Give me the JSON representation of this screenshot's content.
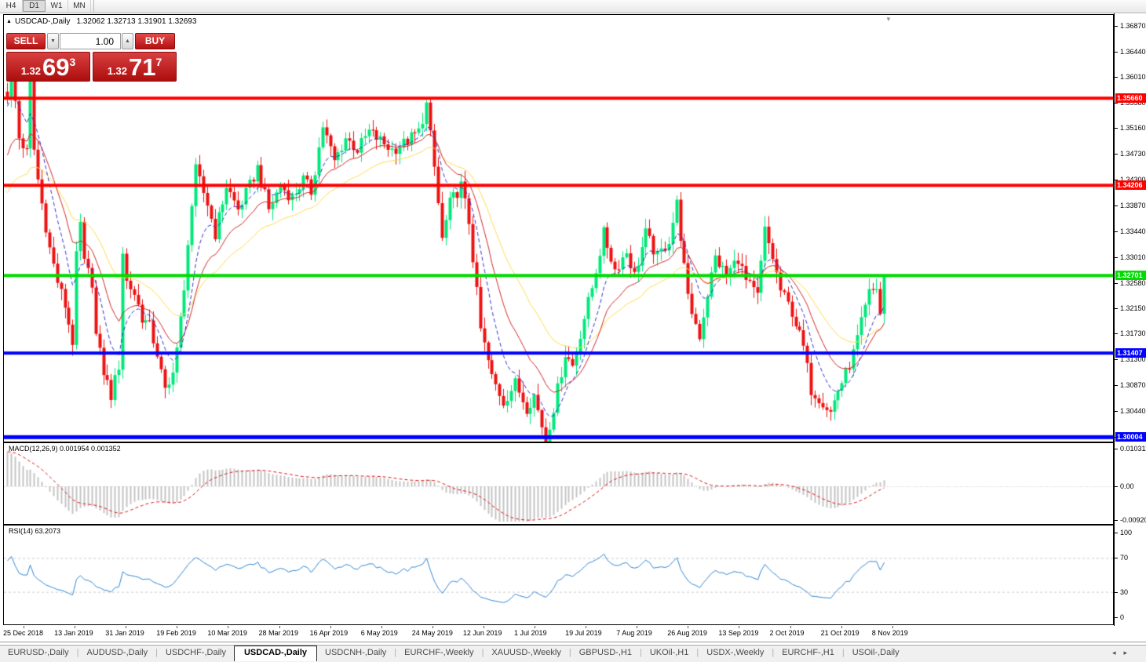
{
  "toolbar": {
    "timeframes": [
      {
        "label": "H4",
        "active": false
      },
      {
        "label": "D1",
        "active": true
      },
      {
        "label": "W1",
        "active": false
      },
      {
        "label": "MN",
        "active": false
      }
    ]
  },
  "chart": {
    "header": {
      "collapse_icon": "▲",
      "symbol": "USDCAD-,Daily",
      "ohlc": "1.32062 1.32713 1.31901 1.32693"
    },
    "scroll_marker": "▼"
  },
  "trade": {
    "sell_label": "SELL",
    "buy_label": "BUY",
    "volume": "1.00",
    "spin_down": "▼",
    "spin_up": "▲",
    "sell_small": "1.32",
    "sell_big": "69",
    "sell_sup": "3",
    "buy_small": "1.32",
    "buy_big": "71",
    "buy_sup": "7"
  },
  "colors": {
    "up": "#00e87a",
    "down": "#ee1111",
    "ma_fast_blue": "#3030cf",
    "ma_mid_red": "#d02828",
    "ma_slow_yellow": "#ffdb4d",
    "hline_red": "#ff0000",
    "hline_green": "#00dc00",
    "hline_blue": "#0000ff",
    "macd_hist": "#c4c4c4",
    "macd_signal": "#e01010",
    "rsi_line": "#2e86d4",
    "grid": "#c8c8c8"
  },
  "chart_data": {
    "type": "candlestick",
    "symbol": "USDCAD-,Daily",
    "n_bars": 229,
    "last_ohlc": {
      "open": 1.32062,
      "high": 1.32713,
      "low": 1.31901,
      "close": 1.32693
    },
    "price_max": 1.3705,
    "price_min": 1.2993,
    "y_ticks": [
      "1.36870",
      "1.36440",
      "1.36010",
      "1.35580",
      "1.35160",
      "1.34730",
      "1.34300",
      "1.33870",
      "1.33440",
      "1.33010",
      "1.32580",
      "1.32150",
      "1.31730",
      "1.31300",
      "1.30870",
      "1.30440",
      "1.30010"
    ],
    "hlines": [
      {
        "price": 1.3566,
        "label": "1.35660",
        "color": "#ff0000",
        "width": 4
      },
      {
        "price": 1.34206,
        "label": "1.34206",
        "color": "#ff0000",
        "width": 4
      },
      {
        "price": 1.32701,
        "label": "1.32701",
        "color": "#00dc00",
        "width": 4
      },
      {
        "price": 1.31407,
        "label": "1.31407",
        "color": "#0000ff",
        "width": 4
      },
      {
        "price": 1.30004,
        "label": "1.30004",
        "color": "#0000ff",
        "width": 5
      }
    ],
    "ma_periods": {
      "fast_blue": 8,
      "mid_red": 16,
      "slow_yellow": 32
    },
    "price_anchors": [
      [
        0,
        1.3575
      ],
      [
        1,
        1.362
      ],
      [
        2,
        1.356
      ],
      [
        3,
        1.35
      ],
      [
        5,
        1.3475
      ],
      [
        6,
        1.359
      ],
      [
        7,
        1.348
      ],
      [
        8,
        1.343
      ],
      [
        9,
        1.339
      ],
      [
        11,
        1.3315
      ],
      [
        13,
        1.326
      ],
      [
        15,
        1.322
      ],
      [
        17,
        1.316
      ],
      [
        18,
        1.33
      ],
      [
        19,
        1.3355
      ],
      [
        20,
        1.329
      ],
      [
        22,
        1.326
      ],
      [
        23,
        1.317
      ],
      [
        25,
        1.311
      ],
      [
        27,
        1.307
      ],
      [
        29,
        1.312
      ],
      [
        30,
        1.331
      ],
      [
        31,
        1.326
      ],
      [
        33,
        1.324
      ],
      [
        35,
        1.32
      ],
      [
        37,
        1.3185
      ],
      [
        39,
        1.314
      ],
      [
        41,
        1.3075
      ],
      [
        42,
        1.3085
      ],
      [
        44,
        1.315
      ],
      [
        46,
        1.324
      ],
      [
        47,
        1.333
      ],
      [
        49,
        1.3445
      ],
      [
        52,
        1.339
      ],
      [
        54,
        1.334
      ],
      [
        57,
        1.342
      ],
      [
        60,
        1.338
      ],
      [
        63,
        1.342
      ],
      [
        65,
        1.345
      ],
      [
        68,
        1.338
      ],
      [
        71,
        1.342
      ],
      [
        74,
        1.34
      ],
      [
        77,
        1.343
      ],
      [
        79,
        1.341
      ],
      [
        82,
        1.352
      ],
      [
        85,
        1.346
      ],
      [
        88,
        1.35
      ],
      [
        91,
        1.348
      ],
      [
        94,
        1.351
      ],
      [
        97,
        1.3495
      ],
      [
        100,
        1.348
      ],
      [
        103,
        1.349
      ],
      [
        107,
        1.351
      ],
      [
        109,
        1.3555
      ],
      [
        111,
        1.345
      ],
      [
        113,
        1.333
      ],
      [
        115,
        1.339
      ],
      [
        118,
        1.342
      ],
      [
        120,
        1.336
      ],
      [
        123,
        1.318
      ],
      [
        126,
        1.31
      ],
      [
        129,
        1.306
      ],
      [
        132,
        1.309
      ],
      [
        135,
        1.305
      ],
      [
        137,
        1.307
      ],
      [
        140,
        1.2995
      ],
      [
        142,
        1.305
      ],
      [
        145,
        1.314
      ],
      [
        147,
        1.312
      ],
      [
        150,
        1.32
      ],
      [
        152,
        1.325
      ],
      [
        155,
        1.334
      ],
      [
        158,
        1.328
      ],
      [
        161,
        1.331
      ],
      [
        163,
        1.327
      ],
      [
        166,
        1.334
      ],
      [
        169,
        1.33
      ],
      [
        172,
        1.333
      ],
      [
        174,
        1.339
      ],
      [
        177,
        1.323
      ],
      [
        180,
        1.317
      ],
      [
        182,
        1.324
      ],
      [
        184,
        1.33
      ],
      [
        187,
        1.327
      ],
      [
        190,
        1.33
      ],
      [
        192,
        1.326
      ],
      [
        195,
        1.3235
      ],
      [
        197,
        1.3345
      ],
      [
        199,
        1.33
      ],
      [
        201,
        1.3245
      ],
      [
        204,
        1.321
      ],
      [
        207,
        1.315
      ],
      [
        209,
        1.308
      ],
      [
        212,
        1.306
      ],
      [
        214,
        1.3042
      ],
      [
        216,
        1.308
      ],
      [
        218,
        1.3105
      ],
      [
        220,
        1.314
      ],
      [
        222,
        1.319
      ],
      [
        224,
        1.324
      ],
      [
        226,
        1.325
      ],
      [
        227,
        1.3206
      ],
      [
        228,
        1.32693
      ]
    ],
    "macd": {
      "label": "MACD(12,26,9) 0.001954 0.001352",
      "params": [
        12,
        26,
        9
      ],
      "values": [
        0.001954,
        0.001352
      ],
      "axis": [
        "0.010311",
        "0.00",
        "-0.00920"
      ]
    },
    "rsi": {
      "label": "RSI(14) 63.2073",
      "period": 14,
      "value": 63.2073,
      "levels": [
        100,
        70,
        30,
        0
      ]
    },
    "x_labels": [
      "25 Dec 2018",
      "13 Jan 2019",
      "31 Jan 2019",
      "19 Feb 2019",
      "10 Mar 2019",
      "28 Mar 2019",
      "16 Apr 2019",
      "6 May 2019",
      "24 May 2019",
      "12 Jun 2019",
      "1 Jul 2019",
      "19 Jul 2019",
      "7 Aug 2019",
      "26 Aug 2019",
      "13 Sep 2019",
      "2 Oct 2019",
      "21 Oct 2019",
      "8 Nov 2019"
    ]
  },
  "tabs": {
    "scroll_left": "◂",
    "scroll_right": "▸",
    "items": [
      {
        "label": "EURUSD-,Daily",
        "active": false
      },
      {
        "label": "AUDUSD-,Daily",
        "active": false
      },
      {
        "label": "USDCHF-,Daily",
        "active": false
      },
      {
        "label": "USDCAD-,Daily",
        "active": true
      },
      {
        "label": "USDCNH-,Daily",
        "active": false
      },
      {
        "label": "EURCHF-,Weekly",
        "active": false
      },
      {
        "label": "XAUUSD-,Weekly",
        "active": false
      },
      {
        "label": "GBPUSD-,H1",
        "active": false
      },
      {
        "label": "UKOil-,H1",
        "active": false
      },
      {
        "label": "USDX-,Weekly",
        "active": false
      },
      {
        "label": "EURCHF-,H1",
        "active": false
      },
      {
        "label": "USOil-,Daily",
        "active": false
      }
    ]
  }
}
